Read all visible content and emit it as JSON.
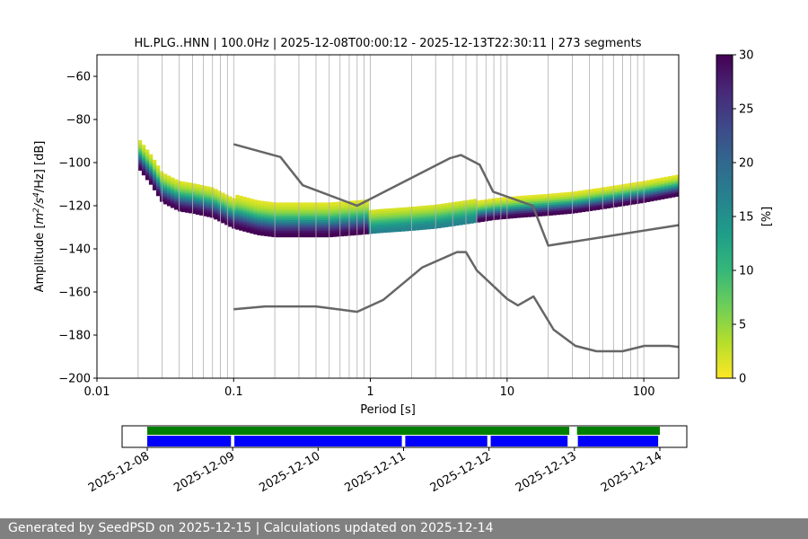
{
  "chart_data": [
    {
      "type": "heatmap",
      "kind": "probabilistic-power-spectral-density",
      "title": "HL.PLG..HNN | 100.0Hz | 2025-12-08T00:00:12 - 2025-12-13T22:30:11 | 273 segments",
      "xlabel": "Period [s]",
      "ylabel_prefix": "Amplitude [",
      "ylabel_unit_base": "m",
      "ylabel_unit_sup1": "2",
      "ylabel_unit_mid": "/s",
      "ylabel_unit_sup2": "4",
      "ylabel_unit_end": "/Hz] [dB]",
      "xscale": "log",
      "xlim": [
        0.01,
        180
      ],
      "ylim": [
        -200,
        -50
      ],
      "x_ticks": [
        0.01,
        0.1,
        1,
        10,
        100
      ],
      "x_tick_labels": [
        "0.01",
        "0.1",
        "1",
        "10",
        "100"
      ],
      "y_ticks": [
        -60,
        -80,
        -100,
        -120,
        -140,
        -160,
        -180,
        -200
      ],
      "y_tick_labels": [
        "−60",
        "−80",
        "−100",
        "−120",
        "−140",
        "−160",
        "−180",
        "−200"
      ],
      "grid": true,
      "colorbar": {
        "label": "[%]",
        "range": [
          0,
          30
        ],
        "ticks": [
          0,
          5,
          10,
          15,
          20,
          25,
          30
        ],
        "tick_labels": [
          "0",
          "5",
          "10",
          "15",
          "20",
          "25",
          "30"
        ],
        "colormap": [
          "#fde725",
          "#b5de2b",
          "#6ece58",
          "#35b779",
          "#1f9e89",
          "#26828e",
          "#31688e",
          "#3e4989",
          "#482878",
          "#440154"
        ]
      },
      "mode_curve": {
        "periods": [
          0.02,
          0.025,
          0.03,
          0.04,
          0.05,
          0.07,
          0.1,
          0.15,
          0.2,
          0.3,
          0.5,
          0.8,
          1.2,
          2,
          3,
          5,
          8,
          12,
          20,
          30,
          50,
          100,
          180
        ],
        "db": [
          -102,
          -110,
          -118,
          -122,
          -123,
          -125,
          -130,
          -133,
          -134,
          -134,
          -134,
          -133,
          -132,
          -131,
          -130,
          -128,
          -126,
          -125,
          -124,
          -123,
          -121,
          -118,
          -115
        ]
      },
      "upper_noise_model": {
        "periods": [
          0.1,
          0.22,
          0.32,
          0.8,
          3.8,
          4.6,
          6.3,
          7.9,
          15.4,
          20,
          180
        ],
        "db": [
          -91.5,
          -97.4,
          -110.5,
          -120,
          -98,
          -96.5,
          -101,
          -113.5,
          -120,
          -138.5,
          -129
        ]
      },
      "lower_noise_model": {
        "periods": [
          0.1,
          0.17,
          0.4,
          0.8,
          1.24,
          2.4,
          4.3,
          5,
          6,
          10,
          12,
          15.6,
          21.9,
          31.6,
          45,
          70,
          101,
          154,
          180
        ],
        "db": [
          -168,
          -166.7,
          -166.7,
          -169.2,
          -163.7,
          -148.6,
          -141.5,
          -141.5,
          -150,
          -163.2,
          -166.2,
          -162.1,
          -177.5,
          -185,
          -187.5,
          -187.5,
          -185,
          -185,
          -185.5
        ]
      }
    },
    {
      "type": "timeline",
      "dates": [
        "2025-12-08",
        "2025-12-09",
        "2025-12-10",
        "2025-12-11",
        "2025-12-12",
        "2025-12-13",
        "2025-12-14"
      ],
      "start_day": 0,
      "end_day": 6.4,
      "data_coverage_days": [
        [
          0,
          4.94
        ],
        [
          5.03,
          6.0
        ]
      ],
      "segment_days": [
        [
          0,
          0.98
        ],
        [
          1.02,
          2.98
        ],
        [
          3.02,
          3.98
        ],
        [
          4.02,
          4.92
        ],
        [
          5.04,
          5.98
        ]
      ],
      "coverage_color": "#008000",
      "segment_color": "#0000ff"
    }
  ],
  "footer": {
    "text": "Generated by SeedPSD on 2025-12-15 | Calculations updated on 2025-12-14"
  }
}
